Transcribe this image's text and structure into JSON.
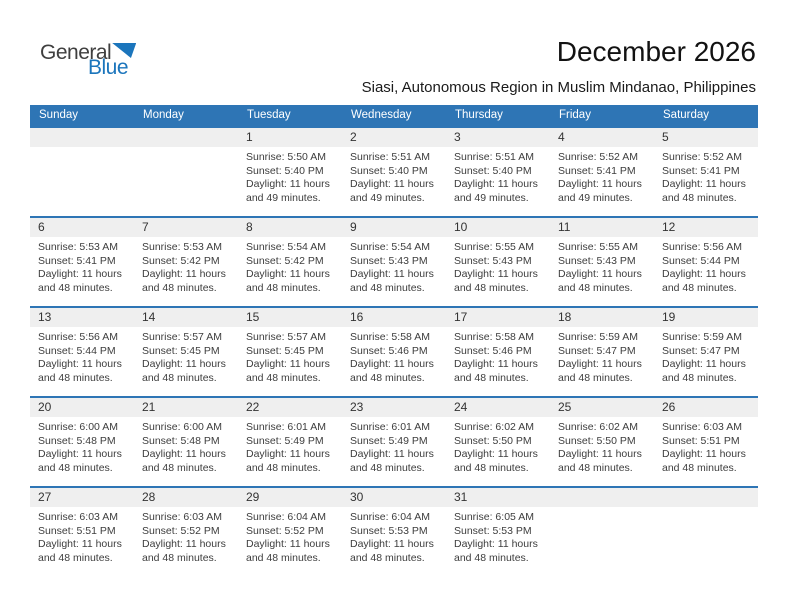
{
  "logo": {
    "word1": "General",
    "word2": "Blue"
  },
  "header": {
    "title": "December 2026",
    "subtitle": "Siasi, Autonomous Region in Muslim Mindanao, Philippines"
  },
  "calendar": {
    "day_headers": [
      "Sunday",
      "Monday",
      "Tuesday",
      "Wednesday",
      "Thursday",
      "Friday",
      "Saturday"
    ],
    "labels": {
      "sunrise": "Sunrise:",
      "sunset": "Sunset:",
      "daylight": "Daylight:"
    },
    "weeks": [
      [
        null,
        null,
        {
          "day": "1",
          "sunrise": "5:50 AM",
          "sunset": "5:40 PM",
          "daylight": "11 hours and 49 minutes."
        },
        {
          "day": "2",
          "sunrise": "5:51 AM",
          "sunset": "5:40 PM",
          "daylight": "11 hours and 49 minutes."
        },
        {
          "day": "3",
          "sunrise": "5:51 AM",
          "sunset": "5:40 PM",
          "daylight": "11 hours and 49 minutes."
        },
        {
          "day": "4",
          "sunrise": "5:52 AM",
          "sunset": "5:41 PM",
          "daylight": "11 hours and 49 minutes."
        },
        {
          "day": "5",
          "sunrise": "5:52 AM",
          "sunset": "5:41 PM",
          "daylight": "11 hours and 48 minutes."
        }
      ],
      [
        {
          "day": "6",
          "sunrise": "5:53 AM",
          "sunset": "5:41 PM",
          "daylight": "11 hours and 48 minutes."
        },
        {
          "day": "7",
          "sunrise": "5:53 AM",
          "sunset": "5:42 PM",
          "daylight": "11 hours and 48 minutes."
        },
        {
          "day": "8",
          "sunrise": "5:54 AM",
          "sunset": "5:42 PM",
          "daylight": "11 hours and 48 minutes."
        },
        {
          "day": "9",
          "sunrise": "5:54 AM",
          "sunset": "5:43 PM",
          "daylight": "11 hours and 48 minutes."
        },
        {
          "day": "10",
          "sunrise": "5:55 AM",
          "sunset": "5:43 PM",
          "daylight": "11 hours and 48 minutes."
        },
        {
          "day": "11",
          "sunrise": "5:55 AM",
          "sunset": "5:43 PM",
          "daylight": "11 hours and 48 minutes."
        },
        {
          "day": "12",
          "sunrise": "5:56 AM",
          "sunset": "5:44 PM",
          "daylight": "11 hours and 48 minutes."
        }
      ],
      [
        {
          "day": "13",
          "sunrise": "5:56 AM",
          "sunset": "5:44 PM",
          "daylight": "11 hours and 48 minutes."
        },
        {
          "day": "14",
          "sunrise": "5:57 AM",
          "sunset": "5:45 PM",
          "daylight": "11 hours and 48 minutes."
        },
        {
          "day": "15",
          "sunrise": "5:57 AM",
          "sunset": "5:45 PM",
          "daylight": "11 hours and 48 minutes."
        },
        {
          "day": "16",
          "sunrise": "5:58 AM",
          "sunset": "5:46 PM",
          "daylight": "11 hours and 48 minutes."
        },
        {
          "day": "17",
          "sunrise": "5:58 AM",
          "sunset": "5:46 PM",
          "daylight": "11 hours and 48 minutes."
        },
        {
          "day": "18",
          "sunrise": "5:59 AM",
          "sunset": "5:47 PM",
          "daylight": "11 hours and 48 minutes."
        },
        {
          "day": "19",
          "sunrise": "5:59 AM",
          "sunset": "5:47 PM",
          "daylight": "11 hours and 48 minutes."
        }
      ],
      [
        {
          "day": "20",
          "sunrise": "6:00 AM",
          "sunset": "5:48 PM",
          "daylight": "11 hours and 48 minutes."
        },
        {
          "day": "21",
          "sunrise": "6:00 AM",
          "sunset": "5:48 PM",
          "daylight": "11 hours and 48 minutes."
        },
        {
          "day": "22",
          "sunrise": "6:01 AM",
          "sunset": "5:49 PM",
          "daylight": "11 hours and 48 minutes."
        },
        {
          "day": "23",
          "sunrise": "6:01 AM",
          "sunset": "5:49 PM",
          "daylight": "11 hours and 48 minutes."
        },
        {
          "day": "24",
          "sunrise": "6:02 AM",
          "sunset": "5:50 PM",
          "daylight": "11 hours and 48 minutes."
        },
        {
          "day": "25",
          "sunrise": "6:02 AM",
          "sunset": "5:50 PM",
          "daylight": "11 hours and 48 minutes."
        },
        {
          "day": "26",
          "sunrise": "6:03 AM",
          "sunset": "5:51 PM",
          "daylight": "11 hours and 48 minutes."
        }
      ],
      [
        {
          "day": "27",
          "sunrise": "6:03 AM",
          "sunset": "5:51 PM",
          "daylight": "11 hours and 48 minutes."
        },
        {
          "day": "28",
          "sunrise": "6:03 AM",
          "sunset": "5:52 PM",
          "daylight": "11 hours and 48 minutes."
        },
        {
          "day": "29",
          "sunrise": "6:04 AM",
          "sunset": "5:52 PM",
          "daylight": "11 hours and 48 minutes."
        },
        {
          "day": "30",
          "sunrise": "6:04 AM",
          "sunset": "5:53 PM",
          "daylight": "11 hours and 48 minutes."
        },
        {
          "day": "31",
          "sunrise": "6:05 AM",
          "sunset": "5:53 PM",
          "daylight": "11 hours and 48 minutes."
        },
        null,
        null
      ]
    ]
  },
  "colors": {
    "header_blue": "#2E75B5",
    "band_gray": "#EFEFEF",
    "logo_blue": "#1B75BC",
    "text_dark": "#3D3D3D"
  }
}
